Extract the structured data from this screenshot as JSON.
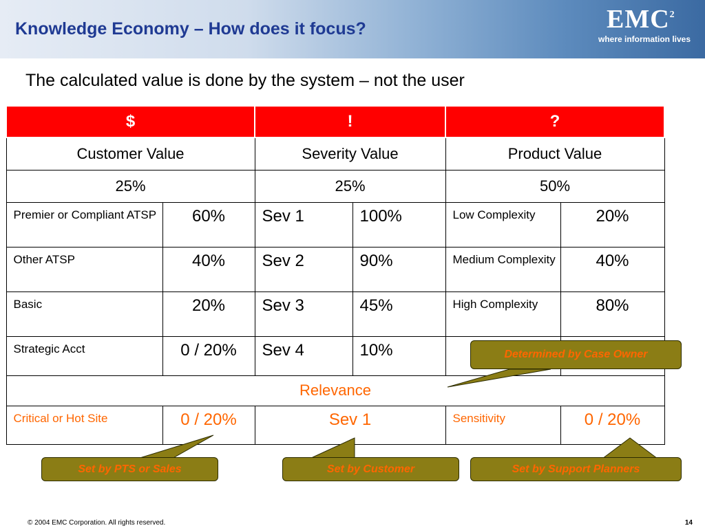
{
  "header": {
    "title": "Knowledge Economy – How does it focus?"
  },
  "logo": {
    "mark": "EMC",
    "superscript": "2",
    "tagline": "where information lives"
  },
  "subtitle": "The calculated value is done by the system – not the user",
  "table": {
    "symbols": [
      "$",
      "!",
      "?"
    ],
    "categories": [
      "Customer Value",
      "Severity Value",
      "Product Value"
    ],
    "weights": [
      "25%",
      "25%",
      "50%"
    ],
    "rows": [
      {
        "c1": "Premier or Compliant ATSP",
        "c1v": "60%",
        "s": "Sev 1",
        "sv": "100%",
        "p": "Low Complexity",
        "pv": "20%"
      },
      {
        "c1": "Other ATSP",
        "c1v": "40%",
        "s": "Sev 2",
        "sv": "90%",
        "p": "Medium Complexity",
        "pv": "40%"
      },
      {
        "c1": "Basic",
        "c1v": "20%",
        "s": "Sev 3",
        "sv": "45%",
        "p": "High Complexity",
        "pv": "80%"
      },
      {
        "c1": "Strategic Acct",
        "c1v": "0 / 20%",
        "s": "Sev 4",
        "sv": "10%",
        "p": "",
        "pv": ""
      }
    ],
    "relevance": "Relevance",
    "last_row": {
      "c1": "Critical or Hot Site",
      "c1v": "0 / 20%",
      "sev": "Sev 1",
      "p": "Sensitivity",
      "pv": "0 / 20%"
    }
  },
  "callouts": {
    "case_owner": "Determined by Case Owner",
    "pts_sales": "Set by PTS or Sales",
    "customer": "Set by Customer",
    "support_planners": "Set by Support Planners"
  },
  "footer": {
    "copyright": "© 2004 EMC Corporation. All rights reserved.",
    "page": "14"
  }
}
